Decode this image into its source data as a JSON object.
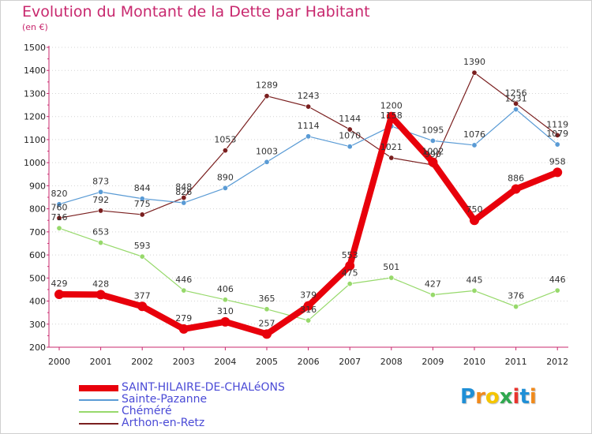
{
  "title": "Evolution du Montant de la Dette par Habitant",
  "subtitle": "(en €)",
  "logo": {
    "letters": [
      "P",
      "r",
      "o",
      "x",
      "i",
      "t",
      "i"
    ],
    "colors": [
      "#1f8fd6",
      "#f08a1c",
      "#f5c500",
      "#2fa84f",
      "#e8342e",
      "#1f8fd6",
      "#f08a1c"
    ]
  },
  "chart_data": {
    "type": "line",
    "title": "Evolution du Montant de la Dette par Habitant",
    "ylabel": "(en €)",
    "x": [
      "2000",
      "2001",
      "2002",
      "2003",
      "2004",
      "2005",
      "2006",
      "2007",
      "2008",
      "2009",
      "2010",
      "2011",
      "2012"
    ],
    "ylim": [
      200,
      1500
    ],
    "yticks": [
      "200",
      "300",
      "400",
      "500",
      "600",
      "700",
      "800",
      "900",
      "1000",
      "1100",
      "1200",
      "1300",
      "1400",
      "1500"
    ],
    "grid": "horizontal dotted",
    "legend_position": "bottom-left",
    "series": [
      {
        "name": "SAINT-HILAIRE-DE-CHALéONS",
        "color": "#e8000b",
        "values": [
          429,
          428,
          377,
          279,
          310,
          257,
          379,
          553,
          1200,
          1002,
          750,
          886,
          958
        ],
        "labels": [
          "429",
          "428",
          "377",
          "279",
          "310",
          "257",
          "379",
          "553",
          "1200",
          "1002",
          "750",
          "886",
          "958"
        ]
      },
      {
        "name": "Sainte-Pazanne",
        "color": "#5a9bd5",
        "values": [
          820,
          873,
          844,
          826,
          890,
          1003,
          1114,
          1070,
          1158,
          1095,
          1076,
          1231,
          1079
        ],
        "labels": [
          "820",
          "873",
          "844",
          "826",
          "890",
          "1003",
          "1114",
          "1070",
          "1158",
          "1095",
          "1076",
          "1231",
          "1079"
        ]
      },
      {
        "name": "Chéméré",
        "color": "#97d96b",
        "values": [
          716,
          653,
          593,
          446,
          406,
          365,
          316,
          475,
          501,
          427,
          445,
          376,
          446
        ],
        "labels": [
          "716",
          "653",
          "593",
          "446",
          "406",
          "365",
          "316",
          "475",
          "501",
          "427",
          "445",
          "376",
          "446"
        ]
      },
      {
        "name": "Arthon-en-Retz",
        "color": "#7a1f1f",
        "values": [
          760,
          792,
          775,
          848,
          1053,
          1289,
          1243,
          1144,
          1021,
          990,
          1390,
          1256,
          1119
        ],
        "labels": [
          "760",
          "792",
          "775",
          "848",
          "1053",
          "1289",
          "1243",
          "1144",
          "1021",
          "990",
          "1390",
          "1256",
          "1119"
        ]
      }
    ]
  }
}
